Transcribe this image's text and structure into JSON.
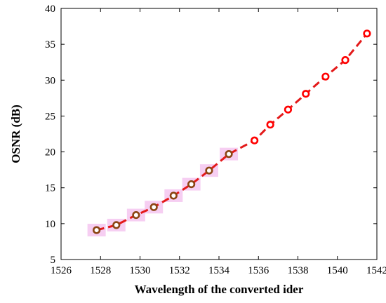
{
  "chart_data": {
    "type": "line",
    "title": "",
    "xlabel": "Wavelength of the converted ider",
    "ylabel": "OSNR (dB)",
    "xlim": [
      1526,
      1542
    ],
    "ylim": [
      5,
      40
    ],
    "xticks": [
      1526,
      1528,
      1530,
      1532,
      1534,
      1536,
      1538,
      1540,
      1542
    ],
    "yticks": [
      5,
      10,
      15,
      20,
      25,
      30,
      35,
      40
    ],
    "grid": false,
    "legend": "none",
    "colors": {
      "dashed_line": "#e31a1a",
      "marker_red": "#ff0000",
      "marker_brown": "#8b4513",
      "highlight": "#f5c6f0"
    },
    "series": [
      {
        "style": "dashed-line-circle-markers",
        "x": [
          1527.8,
          1528.8,
          1529.8,
          1530.7,
          1531.7,
          1532.6,
          1533.5,
          1534.5,
          1535.8,
          1536.6,
          1537.5,
          1538.4,
          1539.4,
          1540.4,
          1541.5
        ],
        "y": [
          9.1,
          9.8,
          11.2,
          12.3,
          13.9,
          15.5,
          17.4,
          19.7,
          21.6,
          23.8,
          25.9,
          28.1,
          30.5,
          32.8,
          36.5
        ]
      }
    ]
  }
}
